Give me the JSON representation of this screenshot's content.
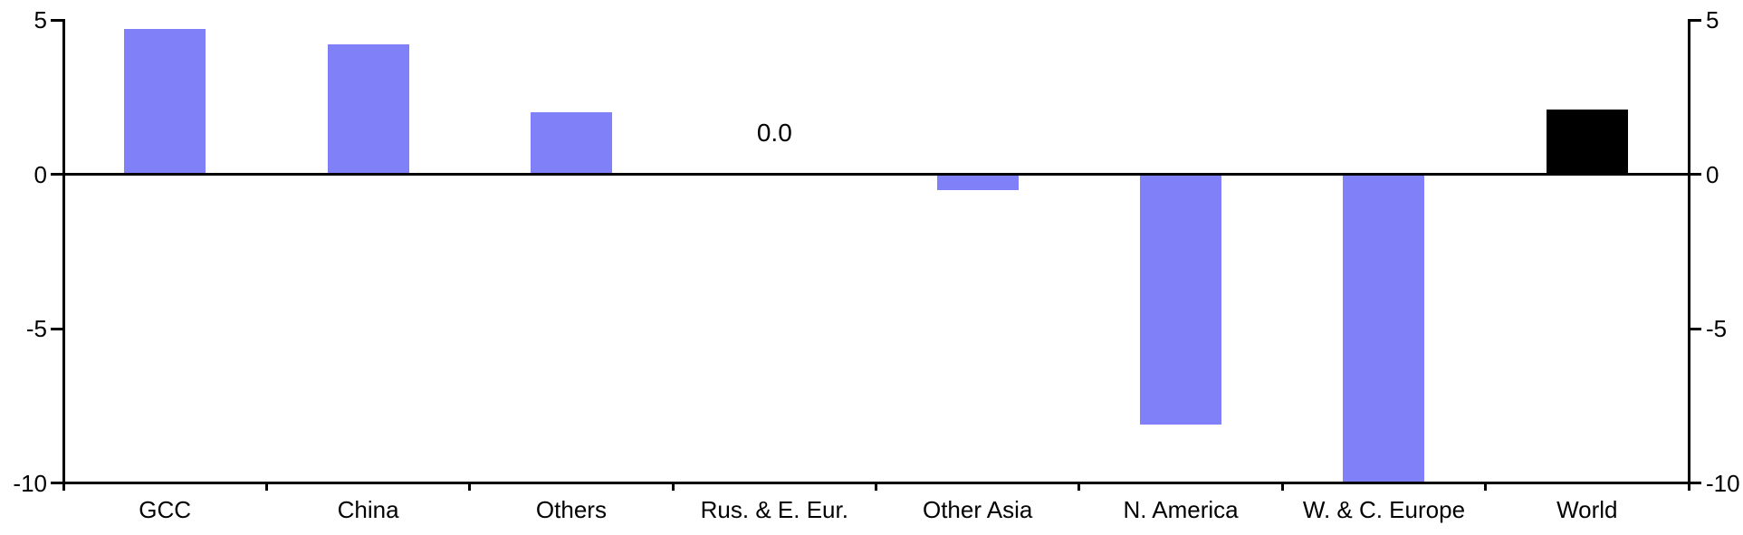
{
  "chart_data": {
    "type": "bar",
    "title": "",
    "xlabel": "",
    "ylabel": "",
    "categories": [
      "GCC",
      "China",
      "Others",
      "Rus. & E. Eur.",
      "Other Asia",
      "N. America",
      "W. & C. Europe",
      "World"
    ],
    "values": [
      4.7,
      4.2,
      2.0,
      0.0,
      -0.5,
      -8.1,
      -10.0,
      2.1
    ],
    "bar_colors": [
      "#8080F8",
      "#8080F8",
      "#8080F8",
      "#8080F8",
      "#8080F8",
      "#8080F8",
      "#8080F8",
      "#000000"
    ],
    "ylim": [
      -10,
      5
    ],
    "yticks": [
      5,
      0,
      -5,
      -10
    ],
    "ytick_labels": [
      "5",
      "0",
      "-5",
      "-10"
    ],
    "left_axis": true,
    "right_axis": true,
    "grid": false,
    "zero_line": true,
    "legend": "none",
    "annotations": [
      {
        "category": "Rus. & E. Eur.",
        "label": "0.0"
      }
    ],
    "colors": {
      "bar_default": "#8080F8",
      "bar_world": "#000000",
      "axis": "#000000",
      "background": "#FFFFFF"
    }
  }
}
